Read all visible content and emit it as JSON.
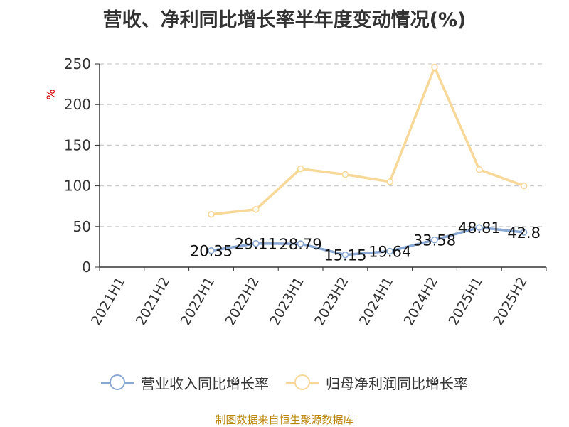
{
  "colors": {
    "revenue": "#8aa8d4",
    "profit": "#f8d898",
    "grid": "#cccccc",
    "axis": "#333333",
    "unit": "#cc0000",
    "source": "#b8860b"
  },
  "chart_data": {
    "type": "line",
    "title": "营收、净利同比增长率半年度变动情况(%)",
    "ylabel": "%",
    "xlabel": "",
    "ylim": [
      0,
      250
    ],
    "yticks": [
      0,
      50,
      100,
      150,
      200,
      250
    ],
    "grid": true,
    "legend_position": "bottom",
    "categories": [
      "2021H1",
      "2021H2",
      "2022H1",
      "2022H2",
      "2023H1",
      "2023H2",
      "2024H1",
      "2024H2",
      "2025H1",
      "2025H2"
    ],
    "series": [
      {
        "name": "营业收入同比增长率",
        "values": [
          null,
          null,
          20.35,
          29.11,
          28.79,
          15.15,
          19.64,
          33.58,
          48.81,
          42.8
        ],
        "labels": [
          "",
          "",
          "20.35",
          "29.11",
          "28.79",
          "15.15",
          "19.64",
          "33.58",
          "48.81",
          "42.8"
        ]
      },
      {
        "name": "归母净利润同比增长率",
        "values": [
          null,
          null,
          65,
          71,
          121,
          114,
          105,
          246,
          120,
          100
        ],
        "labels": []
      }
    ]
  },
  "source": "制图数据来自恒生聚源数据库"
}
